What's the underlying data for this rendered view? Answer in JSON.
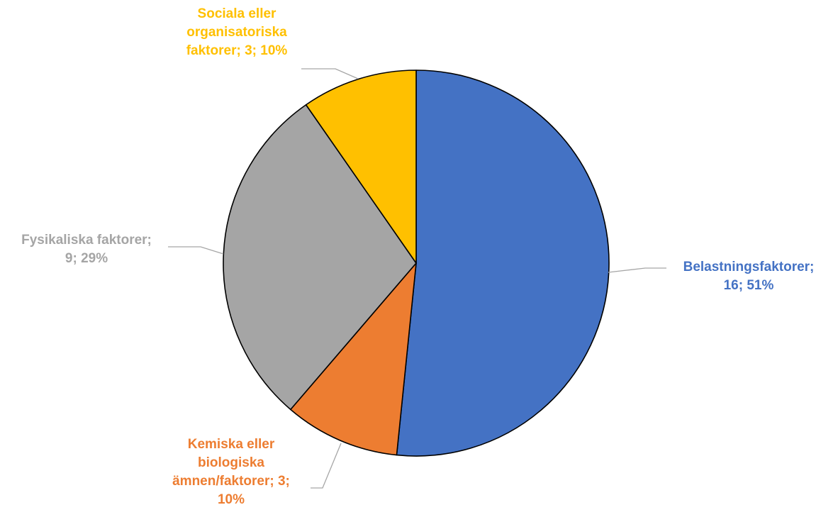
{
  "chart_data": {
    "type": "pie",
    "title": "",
    "slices": [
      {
        "name": "Belastningsfaktorer",
        "value": 16,
        "percent": "51%",
        "color": "#4472C4",
        "label_lines": [
          "Belastningsfaktorer;",
          "16; 51%"
        ]
      },
      {
        "name": "Kemiska eller biologiska ämnen/faktorer",
        "value": 3,
        "percent": "10%",
        "color": "#ED7D31",
        "label_lines": [
          "Kemiska eller",
          "biologiska",
          "ämnen/faktorer; 3;",
          "10%"
        ]
      },
      {
        "name": "Fysikaliska faktorer",
        "value": 9,
        "percent": "29%",
        "color": "#A5A5A5",
        "label_lines": [
          "Fysikaliska faktorer;",
          "9; 29%"
        ]
      },
      {
        "name": "Sociala eller organisatoriska faktorer",
        "value": 3,
        "percent": "10%",
        "color": "#FFC000",
        "label_lines": [
          "Sociala eller",
          "organisatoriska",
          "faktorer; 3; 10%"
        ]
      }
    ],
    "legend": "none",
    "start": "top",
    "direction": "clockwise"
  }
}
